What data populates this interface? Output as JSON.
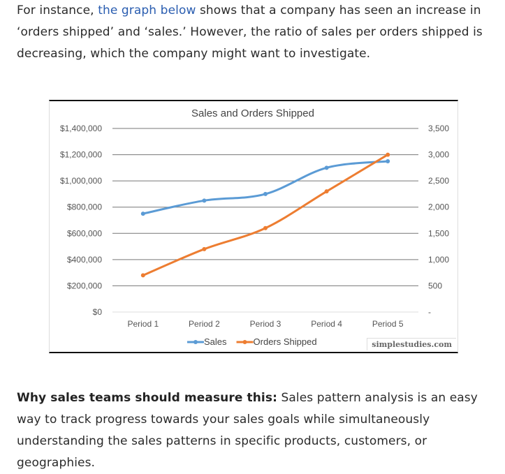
{
  "intro": {
    "before_link": "For instance, ",
    "link": "the graph below",
    "after_link": " shows that a company has seen an increase in ‘orders shipped’ and ‘sales.’ However, the ratio of sales per orders shipped is decreasing, which the company might want to investigate."
  },
  "watermark": "simplestudies.com",
  "outro": {
    "bold": "Why sales teams should measure this:",
    "text": " Sales pattern analysis is an easy way to track progress towards your sales goals while simultaneously understanding the sales patterns in specific products, customers, or geographies."
  },
  "chart_data": {
    "type": "line",
    "title": "Sales and Orders Shipped",
    "categories": [
      "Period 1",
      "Period 2",
      "Period 3",
      "Period 4",
      "Period 5"
    ],
    "series": [
      {
        "name": "Sales",
        "axis": "left",
        "color": "#5b9bd5",
        "values": [
          750000,
          850000,
          900000,
          1100000,
          1150000
        ]
      },
      {
        "name": "Orders Shipped",
        "axis": "right",
        "color": "#ed7d31",
        "values": [
          700,
          1200,
          1600,
          2300,
          3000
        ]
      }
    ],
    "y_left": {
      "ylim": [
        0,
        1400000
      ],
      "ticks": [
        "$0",
        "$200,000",
        "$400,000",
        "$600,000",
        "$800,000",
        "$1,000,000",
        "$1,200,000",
        "$1,400,000"
      ]
    },
    "y_right": {
      "ylim": [
        0,
        3500
      ],
      "ticks": [
        "-",
        "500",
        "1,000",
        "1,500",
        "2,000",
        "2,500",
        "3,000",
        "3,500"
      ]
    },
    "grid": true,
    "smooth": true,
    "legend": "bottom"
  }
}
